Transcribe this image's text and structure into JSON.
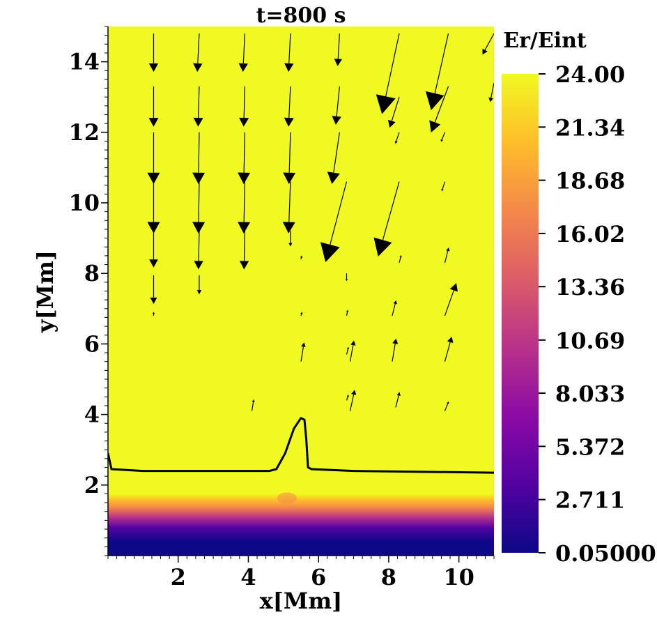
{
  "chart_data": {
    "type": "heatmap",
    "title": "t=800 s",
    "xlabel": "x[Mm]",
    "ylabel": "y[Mm]",
    "xlim": [
      0,
      11
    ],
    "ylim": [
      0,
      15
    ],
    "x_ticks": [
      2,
      4,
      6,
      8,
      10
    ],
    "y_ticks": [
      2,
      4,
      6,
      8,
      10,
      12,
      14
    ],
    "colorbar": {
      "label": "Er/Eint",
      "min": 0.05,
      "max": 24.0,
      "tick_labels": [
        "24.00",
        "21.34",
        "18.68",
        "16.02",
        "13.36",
        "10.69",
        "8.033",
        "5.372",
        "2.711",
        "0.05000"
      ],
      "tick_values": [
        24.0,
        21.34,
        18.68,
        16.02,
        13.36,
        10.69,
        8.033,
        5.372,
        2.711,
        0.05
      ],
      "colormap": [
        "#0d0887",
        "#5302a3",
        "#8b0aa5",
        "#b83289",
        "#db5c68",
        "#f48849",
        "#febd2a",
        "#f0f921"
      ]
    },
    "field": {
      "saturated_value": 24.0,
      "transition_y_range": [
        0.0,
        1.75
      ],
      "note_bump_x": 5.1
    },
    "contour": {
      "points": [
        [
          0.0,
          2.9
        ],
        [
          0.1,
          2.45
        ],
        [
          1.0,
          2.4
        ],
        [
          4.6,
          2.4
        ],
        [
          4.8,
          2.45
        ],
        [
          5.05,
          2.9
        ],
        [
          5.3,
          3.6
        ],
        [
          5.5,
          3.9
        ],
        [
          5.6,
          3.85
        ],
        [
          5.65,
          3.3
        ],
        [
          5.7,
          2.5
        ],
        [
          5.8,
          2.45
        ],
        [
          7.0,
          2.4
        ],
        [
          11.0,
          2.35
        ]
      ]
    },
    "vectors": [
      {
        "x": 1.3,
        "y": 14.8,
        "u": 0.0,
        "v": -1.0
      },
      {
        "x": 2.6,
        "y": 14.8,
        "u": -0.05,
        "v": -1.0
      },
      {
        "x": 3.9,
        "y": 14.8,
        "u": -0.05,
        "v": -1.0
      },
      {
        "x": 5.2,
        "y": 14.8,
        "u": -0.05,
        "v": -1.0
      },
      {
        "x": 6.6,
        "y": 14.8,
        "u": -0.05,
        "v": -0.85
      },
      {
        "x": 11.0,
        "y": 14.8,
        "u": -0.3,
        "v": -0.55
      },
      {
        "x": 1.3,
        "y": 13.3,
        "u": 0.0,
        "v": -1.05
      },
      {
        "x": 2.6,
        "y": 13.3,
        "u": -0.03,
        "v": -1.05
      },
      {
        "x": 3.9,
        "y": 13.3,
        "u": -0.03,
        "v": -1.05
      },
      {
        "x": 5.2,
        "y": 13.3,
        "u": -0.05,
        "v": -1.05
      },
      {
        "x": 6.6,
        "y": 13.3,
        "u": -0.1,
        "v": -1.0
      },
      {
        "x": 8.3,
        "y": 14.8,
        "u": -0.45,
        "v": -2.1
      },
      {
        "x": 9.7,
        "y": 14.8,
        "u": -0.45,
        "v": -2.0
      },
      {
        "x": 11.0,
        "y": 13.4,
        "u": -0.1,
        "v": -0.5
      },
      {
        "x": 1.3,
        "y": 12.0,
        "u": 0.0,
        "v": -1.35
      },
      {
        "x": 2.6,
        "y": 12.0,
        "u": -0.02,
        "v": -1.35
      },
      {
        "x": 3.9,
        "y": 12.0,
        "u": -0.03,
        "v": -1.35
      },
      {
        "x": 5.2,
        "y": 12.0,
        "u": -0.04,
        "v": -1.35
      },
      {
        "x": 6.6,
        "y": 12.0,
        "u": -0.2,
        "v": -1.35
      },
      {
        "x": 8.3,
        "y": 13.0,
        "u": -0.25,
        "v": -0.8
      },
      {
        "x": 9.7,
        "y": 13.3,
        "u": -0.45,
        "v": -1.2
      },
      {
        "x": 8.3,
        "y": 12.0,
        "u": -0.1,
        "v": -0.3
      },
      {
        "x": 9.6,
        "y": 12.0,
        "u": -0.1,
        "v": -0.25
      },
      {
        "x": 1.3,
        "y": 10.6,
        "u": 0.0,
        "v": -1.35
      },
      {
        "x": 2.6,
        "y": 10.6,
        "u": -0.02,
        "v": -1.35
      },
      {
        "x": 3.9,
        "y": 10.6,
        "u": -0.03,
        "v": -1.35
      },
      {
        "x": 5.2,
        "y": 10.6,
        "u": -0.05,
        "v": -1.35
      },
      {
        "x": 6.8,
        "y": 10.6,
        "u": -0.55,
        "v": -2.1
      },
      {
        "x": 8.3,
        "y": 10.6,
        "u": -0.55,
        "v": -1.95
      },
      {
        "x": 9.6,
        "y": 10.6,
        "u": -0.08,
        "v": -0.25
      },
      {
        "x": 1.3,
        "y": 9.2,
        "u": 0.0,
        "v": -0.95
      },
      {
        "x": 2.6,
        "y": 9.2,
        "u": -0.02,
        "v": -1.0
      },
      {
        "x": 3.9,
        "y": 9.2,
        "u": -0.02,
        "v": -1.0
      },
      {
        "x": 5.2,
        "y": 9.2,
        "u": 0.0,
        "v": -0.4
      },
      {
        "x": 1.3,
        "y": 7.95,
        "u": 0.0,
        "v": -0.75
      },
      {
        "x": 2.6,
        "y": 7.95,
        "u": 0.0,
        "v": -0.5
      },
      {
        "x": 5.5,
        "y": 8.4,
        "u": 0.02,
        "v": 0.1
      },
      {
        "x": 6.8,
        "y": 8.0,
        "u": 0.0,
        "v": -0.2
      },
      {
        "x": 8.3,
        "y": 8.3,
        "u": 0.05,
        "v": 0.2
      },
      {
        "x": 9.6,
        "y": 8.3,
        "u": 0.1,
        "v": 0.4
      },
      {
        "x": 1.3,
        "y": 6.8,
        "u": 0.0,
        "v": 0.1
      },
      {
        "x": 5.5,
        "y": 6.8,
        "u": 0.03,
        "v": 0.1
      },
      {
        "x": 6.8,
        "y": 6.8,
        "u": 0.03,
        "v": 0.15
      },
      {
        "x": 8.1,
        "y": 6.8,
        "u": 0.1,
        "v": 0.4
      },
      {
        "x": 9.6,
        "y": 6.8,
        "u": 0.3,
        "v": 0.85
      },
      {
        "x": 6.8,
        "y": 5.7,
        "u": 0.05,
        "v": 0.2
      },
      {
        "x": 5.5,
        "y": 5.5,
        "u": 0.08,
        "v": 0.5
      },
      {
        "x": 6.9,
        "y": 5.5,
        "u": 0.1,
        "v": 0.55
      },
      {
        "x": 8.1,
        "y": 5.5,
        "u": 0.1,
        "v": 0.6
      },
      {
        "x": 9.6,
        "y": 5.5,
        "u": 0.18,
        "v": 0.65
      },
      {
        "x": 6.8,
        "y": 4.4,
        "u": 0.05,
        "v": 0.15
      },
      {
        "x": 4.1,
        "y": 4.1,
        "u": 0.05,
        "v": 0.3
      },
      {
        "x": 6.9,
        "y": 4.1,
        "u": 0.12,
        "v": 0.55
      },
      {
        "x": 8.2,
        "y": 4.2,
        "u": 0.1,
        "v": 0.4
      },
      {
        "x": 9.6,
        "y": 4.1,
        "u": 0.1,
        "v": 0.25
      }
    ]
  }
}
